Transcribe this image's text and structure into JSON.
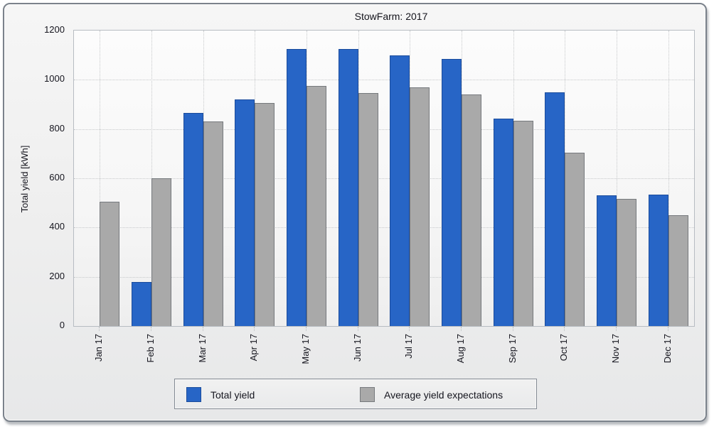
{
  "chart_data": {
    "type": "bar",
    "title": "StowFarm: 2017",
    "xlabel": "",
    "ylabel": "Total yield [kWh]",
    "ylim": [
      0,
      1200
    ],
    "yticks": [
      0,
      200,
      400,
      600,
      800,
      1000,
      1200
    ],
    "grid": true,
    "legend_position": "bottom",
    "categories": [
      "Jan 17",
      "Feb 17",
      "Mar 17",
      "Apr 17",
      "May 17",
      "Jun 17",
      "Jul 17",
      "Aug 17",
      "Sep 17",
      "Oct 17",
      "Nov 17",
      "Dec 17"
    ],
    "series": [
      {
        "name": "Total yield",
        "color": "#2765c6",
        "border_color": "#1b4c9c",
        "values": [
          null,
          180,
          865,
          920,
          1125,
          1125,
          1100,
          1085,
          843,
          950,
          532,
          535
        ]
      },
      {
        "name": "Average yield expectations",
        "color": "#a9a9a9",
        "border_color": "#76797d",
        "values": [
          505,
          600,
          830,
          905,
          975,
          945,
          970,
          940,
          835,
          705,
          515,
          450
        ]
      }
    ]
  }
}
